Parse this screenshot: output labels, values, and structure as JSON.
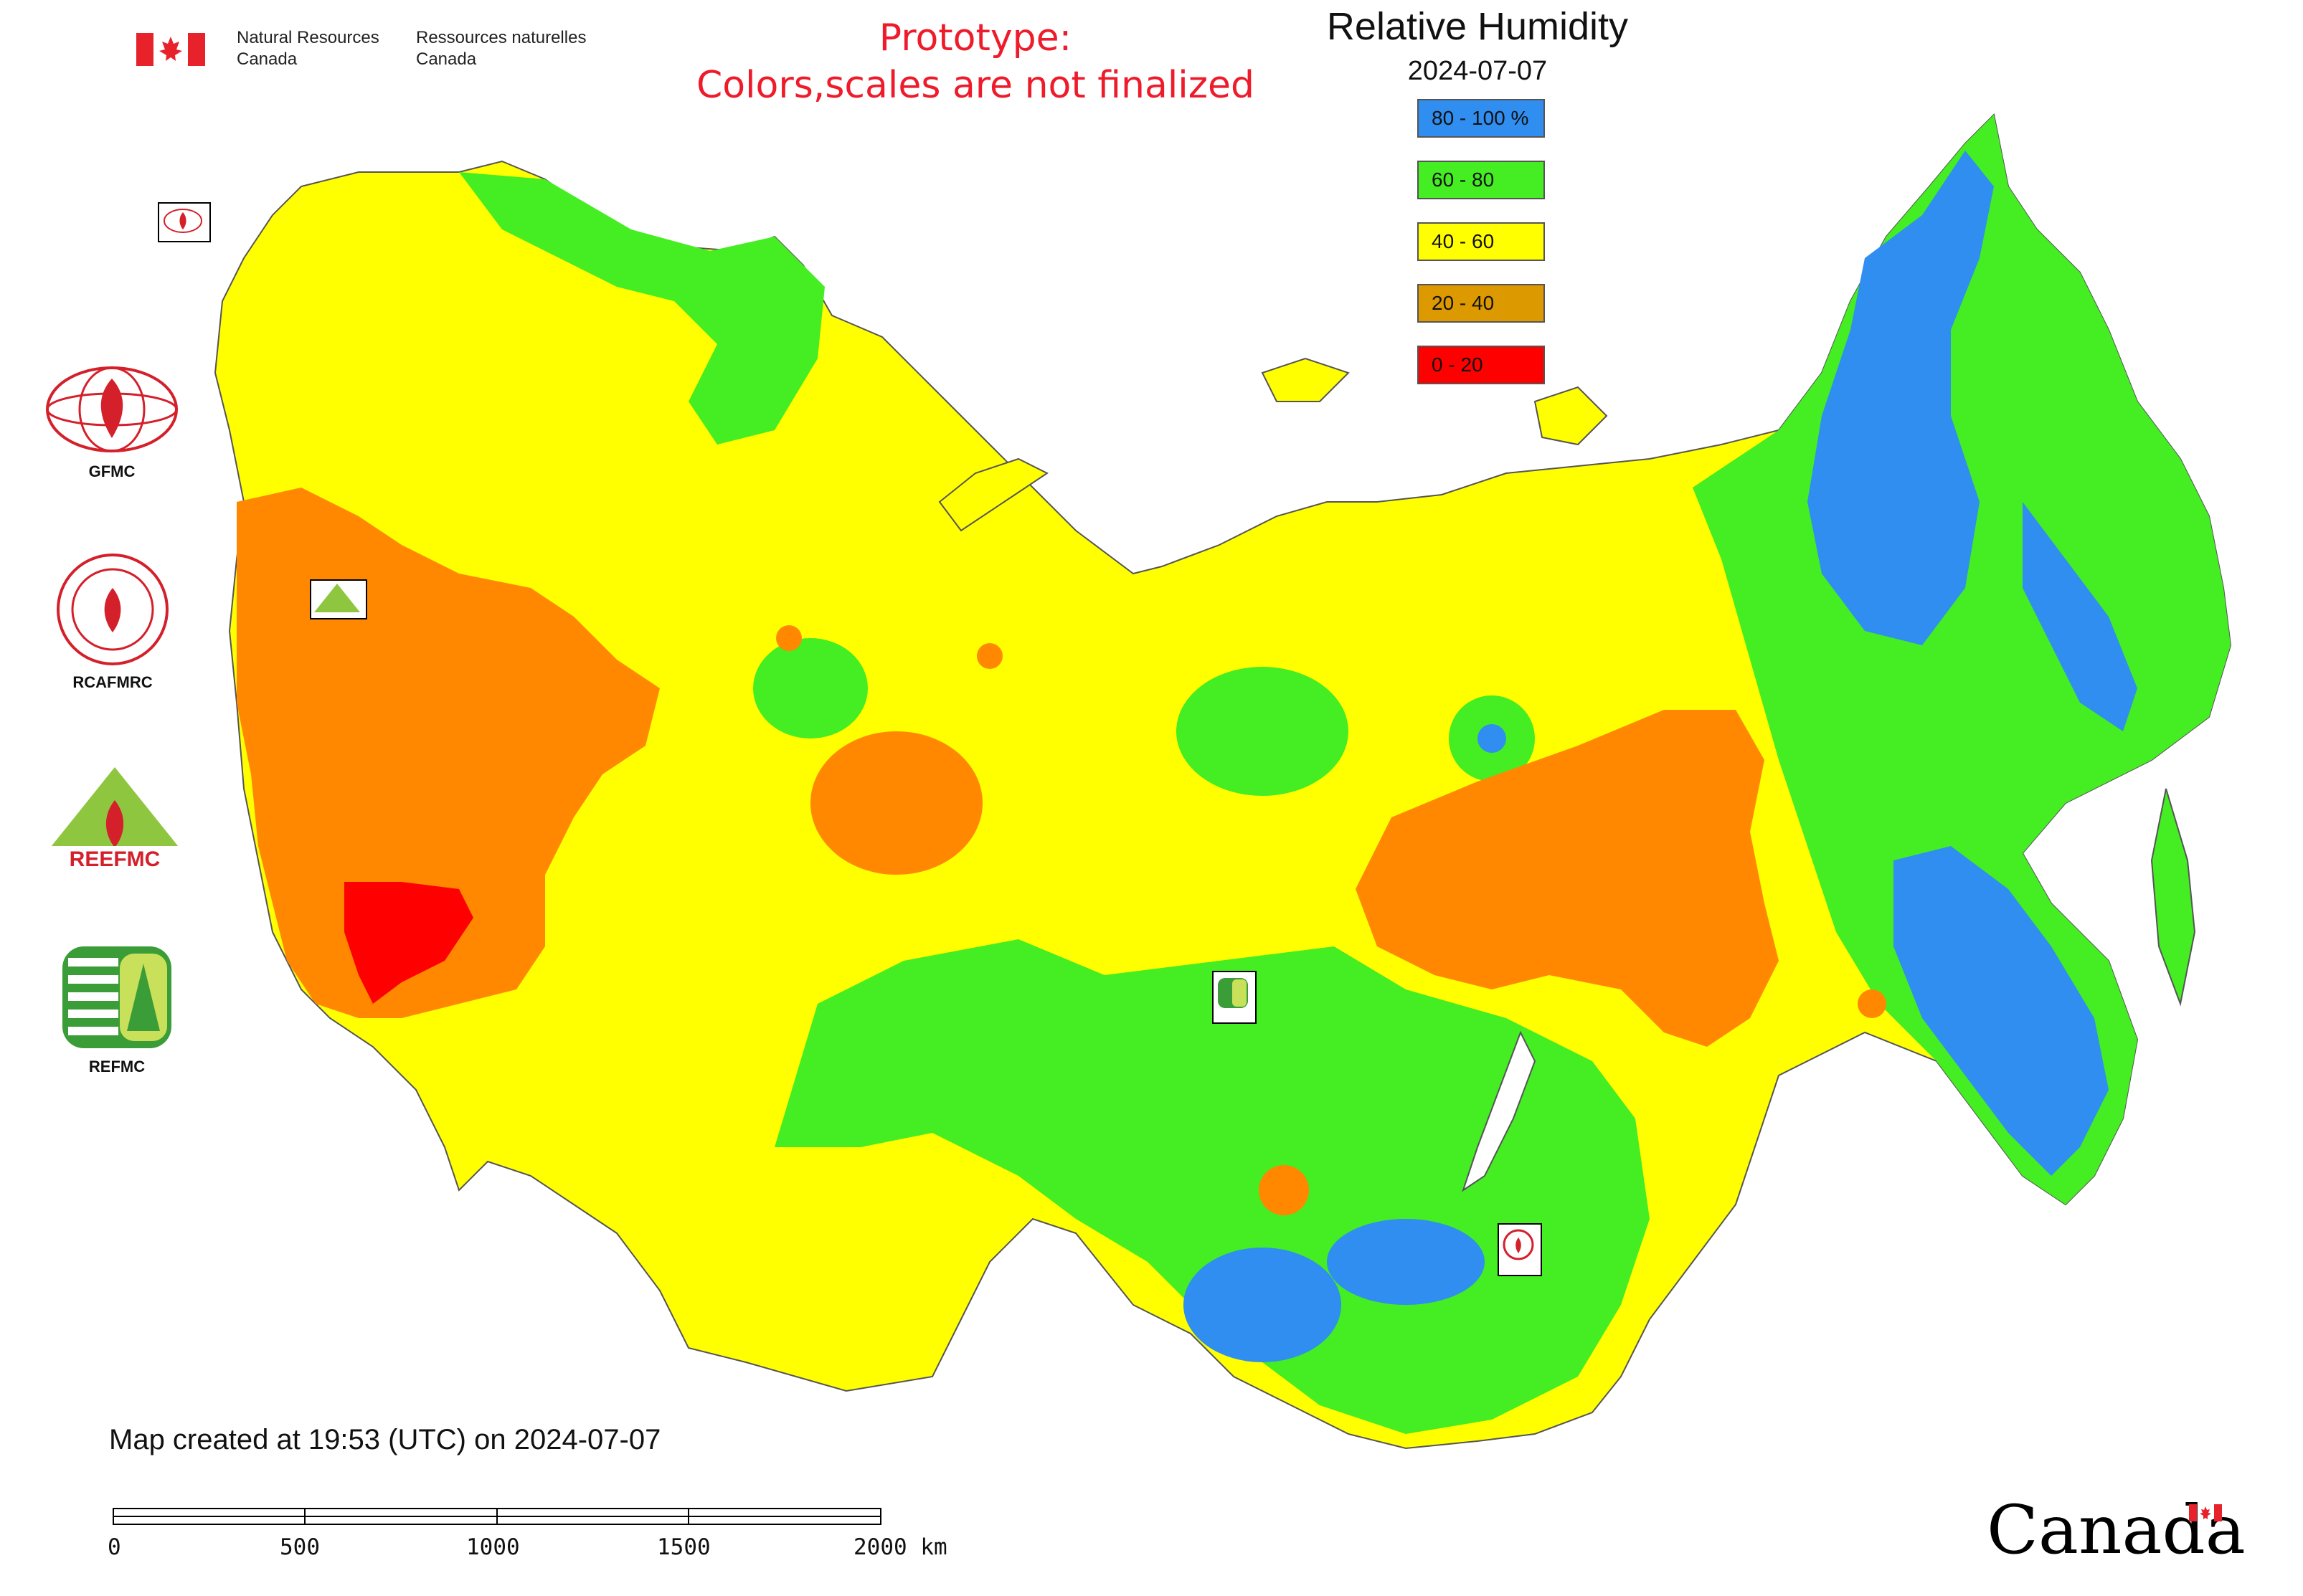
{
  "header": {
    "signature_en_line1": "Natural Resources",
    "signature_en_line2": "Canada",
    "signature_fr_line1": "Ressources naturelles",
    "signature_fr_line2": "Canada",
    "prototype_line1": "Prototype:",
    "prototype_line2": "Colors,scales are not finalized"
  },
  "map": {
    "title": "Relative Humidity",
    "date": "2024-07-07",
    "legend": [
      {
        "label": "80 - 100 %",
        "color": "#2f8ef0"
      },
      {
        "label": "60 - 80",
        "color": "#44ee22"
      },
      {
        "label": "40 - 60",
        "color": "#ffff00"
      },
      {
        "label": "20 - 40",
        "color": "#dd9900"
      },
      {
        "label": "0 - 20",
        "color": "#ff0000"
      }
    ],
    "orange_region_color": "#ff8800",
    "land_outline_color": "#555555"
  },
  "agencies": [
    {
      "label": "GFMC"
    },
    {
      "label": "RCAFMRC"
    },
    {
      "label": "REEFMC",
      "logo_text": "REEFMC"
    },
    {
      "label": "REFMC"
    }
  ],
  "footer": {
    "created": "Map created at 19:53 (UTC) on 2024-07-07",
    "scale_ticks": [
      "0",
      "500",
      "1000",
      "1500",
      "2000 km"
    ],
    "wordmark": "Canada"
  }
}
